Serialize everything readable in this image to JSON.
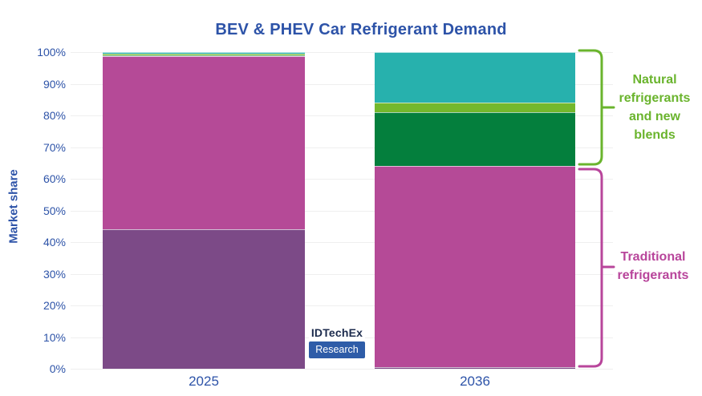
{
  "title": "BEV & PHEV Car Refrigerant Demand",
  "y_axis": {
    "label": "Market share",
    "ticks": [
      "100%",
      "90%",
      "80%",
      "70%",
      "60%",
      "50%",
      "40%",
      "30%",
      "20%",
      "10%",
      "0%"
    ]
  },
  "annotations": {
    "natural": "Natural refrigerants and new blends",
    "traditional": "Traditional refrigerants"
  },
  "logo": {
    "line1": "IDTechEx",
    "line2": "Research"
  },
  "colors": {
    "title_blue": "#2d53a8",
    "purple": "#7c4a87",
    "magenta": "#b54a97",
    "dark_green": "#047f3d",
    "light_green": "#74b82c",
    "teal": "#27b1ad",
    "natural_text_green": "#6ab42d",
    "traditional_text_magenta": "#b8459b",
    "gridline_gray": "#efefef",
    "logo_blue": "#2e5ca8"
  },
  "chart_data": {
    "type": "bar",
    "stacked": true,
    "title": "BEV & PHEV Car Refrigerant Demand",
    "xlabel": "",
    "ylabel": "Market share",
    "ylim": [
      0,
      100
    ],
    "y_unit": "percent",
    "grid": "horizontal, every 10%",
    "legend_position": "right-brackets",
    "categories": [
      "2025",
      "2036"
    ],
    "series": [
      {
        "name": "purple-segment",
        "group": "Traditional refrigerants",
        "color": "purple",
        "values": [
          44.0,
          0.5
        ]
      },
      {
        "name": "magenta-segment",
        "group": "Traditional refrigerants",
        "color": "magenta",
        "values": [
          54.7,
          63.5
        ]
      },
      {
        "name": "dark-green-segment",
        "group": "Natural refrigerants and new blends",
        "color": "dark_green",
        "values": [
          0.3,
          17.0
        ]
      },
      {
        "name": "light-green-segment",
        "group": "Natural refrigerants and new blends",
        "color": "light_green",
        "values": [
          0.4,
          3.0
        ]
      },
      {
        "name": "teal-segment",
        "group": "Natural refrigerants and new blends",
        "color": "teal",
        "values": [
          0.6,
          16.0
        ]
      }
    ],
    "group_ranges": {
      "Natural refrigerants and new blends": [
        64,
        100
      ],
      "Traditional refrigerants": [
        0,
        64
      ]
    }
  }
}
